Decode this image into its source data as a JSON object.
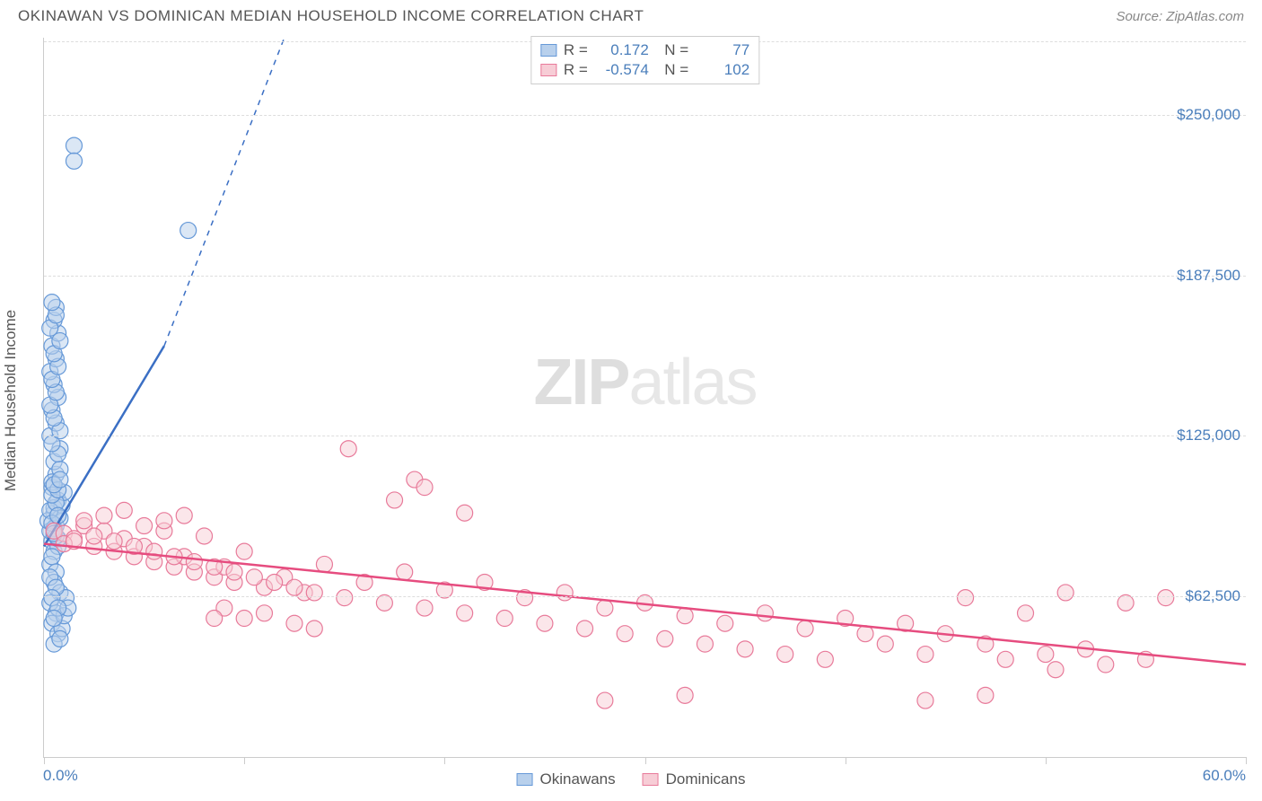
{
  "title": "OKINAWAN VS DOMINICAN MEDIAN HOUSEHOLD INCOME CORRELATION CHART",
  "source": "Source: ZipAtlas.com",
  "watermark_bold": "ZIP",
  "watermark_light": "atlas",
  "y_axis_title": "Median Household Income",
  "x_axis": {
    "min_label": "0.0%",
    "max_label": "60.0%",
    "min": 0,
    "max": 60,
    "tick_positions_pct": [
      0,
      16.67,
      33.33,
      50,
      66.67,
      83.33,
      100
    ]
  },
  "y_axis": {
    "min": 0,
    "max": 280000,
    "ticks": [
      {
        "value": 62500,
        "label": "$62,500"
      },
      {
        "value": 125000,
        "label": "$125,000"
      },
      {
        "value": 187500,
        "label": "$187,500"
      },
      {
        "value": 250000,
        "label": "$250,000"
      }
    ]
  },
  "series": [
    {
      "name": "Okinawans",
      "fill": "#b8d0ec",
      "stroke": "#6699d8",
      "line_color": "#3b6fc4",
      "R": "0.172",
      "N": "77",
      "points": [
        [
          0.4,
          84000
        ],
        [
          0.5,
          80000
        ],
        [
          0.6,
          90000
        ],
        [
          0.3,
          75000
        ],
        [
          0.5,
          95000
        ],
        [
          0.7,
          100000
        ],
        [
          0.4,
          105000
        ],
        [
          0.6,
          110000
        ],
        [
          0.5,
          115000
        ],
        [
          0.8,
          120000
        ],
        [
          0.3,
          125000
        ],
        [
          0.6,
          130000
        ],
        [
          0.4,
          135000
        ],
        [
          0.7,
          140000
        ],
        [
          0.5,
          145000
        ],
        [
          0.3,
          150000
        ],
        [
          0.6,
          155000
        ],
        [
          0.4,
          160000
        ],
        [
          0.7,
          165000
        ],
        [
          0.5,
          170000
        ],
        [
          0.6,
          175000
        ],
        [
          0.4,
          107000
        ],
        [
          0.8,
          112000
        ],
        [
          0.5,
          97000
        ],
        [
          0.3,
          88000
        ],
        [
          0.7,
          82000
        ],
        [
          0.4,
          78000
        ],
        [
          0.6,
          72000
        ],
        [
          0.5,
          68000
        ],
        [
          0.8,
          64000
        ],
        [
          0.3,
          60000
        ],
        [
          0.6,
          56000
        ],
        [
          0.4,
          52000
        ],
        [
          0.7,
          48000
        ],
        [
          0.5,
          44000
        ],
        [
          0.9,
          50000
        ],
        [
          1.0,
          55000
        ],
        [
          1.1,
          62000
        ],
        [
          1.2,
          58000
        ],
        [
          0.2,
          92000
        ],
        [
          0.9,
          98000
        ],
        [
          1.0,
          103000
        ],
        [
          0.7,
          118000
        ],
        [
          0.4,
          122000
        ],
        [
          0.8,
          127000
        ],
        [
          0.5,
          132000
        ],
        [
          0.3,
          137000
        ],
        [
          0.6,
          142000
        ],
        [
          0.4,
          147000
        ],
        [
          0.7,
          152000
        ],
        [
          0.5,
          157000
        ],
        [
          0.8,
          162000
        ],
        [
          0.3,
          167000
        ],
        [
          0.6,
          172000
        ],
        [
          0.4,
          177000
        ],
        [
          0.7,
          85000
        ],
        [
          0.5,
          89000
        ],
        [
          0.8,
          93000
        ],
        [
          0.3,
          96000
        ],
        [
          0.6,
          99000
        ],
        [
          0.4,
          102000
        ],
        [
          0.7,
          104000
        ],
        [
          0.5,
          106000
        ],
        [
          0.8,
          108000
        ],
        [
          0.3,
          70000
        ],
        [
          0.6,
          66000
        ],
        [
          0.4,
          62000
        ],
        [
          0.7,
          58000
        ],
        [
          0.5,
          54000
        ],
        [
          0.8,
          46000
        ],
        [
          1.5,
          238000
        ],
        [
          1.5,
          232000
        ],
        [
          7.2,
          205000
        ],
        [
          0.6,
          86000
        ],
        [
          0.4,
          91000
        ],
        [
          0.7,
          94000
        ],
        [
          0.5,
          87000
        ]
      ],
      "trendline": {
        "x1": 0,
        "y1": 82000,
        "x2": 6.0,
        "y2": 160000,
        "dash_to_x": 12,
        "dash_to_y": 280000
      }
    },
    {
      "name": "Dominicans",
      "fill": "#f7cdd6",
      "stroke": "#e87a9a",
      "line_color": "#e64c7f",
      "R": "-0.574",
      "N": "102",
      "points": [
        [
          0.5,
          88000
        ],
        [
          1.0,
          87000
        ],
        [
          1.5,
          85000
        ],
        [
          2.0,
          90000
        ],
        [
          2.5,
          82000
        ],
        [
          3.0,
          88000
        ],
        [
          3.5,
          80000
        ],
        [
          4.0,
          85000
        ],
        [
          4.5,
          78000
        ],
        [
          5.0,
          82000
        ],
        [
          5.5,
          76000
        ],
        [
          6.0,
          88000
        ],
        [
          6.5,
          74000
        ],
        [
          7.0,
          78000
        ],
        [
          7.5,
          72000
        ],
        [
          8.0,
          86000
        ],
        [
          8.5,
          70000
        ],
        [
          9.0,
          74000
        ],
        [
          9.5,
          68000
        ],
        [
          10.0,
          80000
        ],
        [
          11.0,
          66000
        ],
        [
          12.0,
          70000
        ],
        [
          13.0,
          64000
        ],
        [
          14.0,
          75000
        ],
        [
          15.0,
          62000
        ],
        [
          16.0,
          68000
        ],
        [
          17.0,
          60000
        ],
        [
          18.0,
          72000
        ],
        [
          19.0,
          58000
        ],
        [
          20.0,
          65000
        ],
        [
          21.0,
          56000
        ],
        [
          22.0,
          68000
        ],
        [
          23.0,
          54000
        ],
        [
          24.0,
          62000
        ],
        [
          25.0,
          52000
        ],
        [
          26.0,
          64000
        ],
        [
          27.0,
          50000
        ],
        [
          28.0,
          58000
        ],
        [
          29.0,
          48000
        ],
        [
          30.0,
          60000
        ],
        [
          31.0,
          46000
        ],
        [
          32.0,
          55000
        ],
        [
          33.0,
          44000
        ],
        [
          34.0,
          52000
        ],
        [
          35.0,
          42000
        ],
        [
          36.0,
          56000
        ],
        [
          37.0,
          40000
        ],
        [
          38.0,
          50000
        ],
        [
          39.0,
          38000
        ],
        [
          40.0,
          54000
        ],
        [
          41.0,
          48000
        ],
        [
          42.0,
          44000
        ],
        [
          43.0,
          52000
        ],
        [
          44.0,
          40000
        ],
        [
          45.0,
          48000
        ],
        [
          46.0,
          62000
        ],
        [
          47.0,
          44000
        ],
        [
          48.0,
          38000
        ],
        [
          49.0,
          56000
        ],
        [
          50.0,
          40000
        ],
        [
          51.0,
          64000
        ],
        [
          52.0,
          42000
        ],
        [
          53.0,
          36000
        ],
        [
          54.0,
          60000
        ],
        [
          55.0,
          38000
        ],
        [
          56.0,
          62000
        ],
        [
          15.2,
          120000
        ],
        [
          18.5,
          108000
        ],
        [
          19.0,
          105000
        ],
        [
          17.5,
          100000
        ],
        [
          21.0,
          95000
        ],
        [
          2.0,
          92000
        ],
        [
          3.0,
          94000
        ],
        [
          4.0,
          96000
        ],
        [
          5.0,
          90000
        ],
        [
          6.0,
          92000
        ],
        [
          7.0,
          94000
        ],
        [
          1.0,
          83000
        ],
        [
          1.5,
          84000
        ],
        [
          2.5,
          86000
        ],
        [
          3.5,
          84000
        ],
        [
          4.5,
          82000
        ],
        [
          5.5,
          80000
        ],
        [
          6.5,
          78000
        ],
        [
          7.5,
          76000
        ],
        [
          8.5,
          74000
        ],
        [
          9.5,
          72000
        ],
        [
          10.5,
          70000
        ],
        [
          11.5,
          68000
        ],
        [
          12.5,
          66000
        ],
        [
          13.5,
          64000
        ],
        [
          28.0,
          22000
        ],
        [
          32.0,
          24000
        ],
        [
          44.0,
          22000
        ],
        [
          47.0,
          24000
        ],
        [
          9.0,
          58000
        ],
        [
          10.0,
          54000
        ],
        [
          11.0,
          56000
        ],
        [
          12.5,
          52000
        ],
        [
          13.5,
          50000
        ],
        [
          8.5,
          54000
        ],
        [
          50.5,
          34000
        ]
      ],
      "trendline": {
        "x1": 0,
        "y1": 83000,
        "x2": 60,
        "y2": 36000
      }
    }
  ],
  "marker_radius": 9,
  "marker_opacity": 0.5,
  "grid_color": "#dddddd",
  "text_color": "#555555",
  "axis_value_color": "#4a7ebb"
}
